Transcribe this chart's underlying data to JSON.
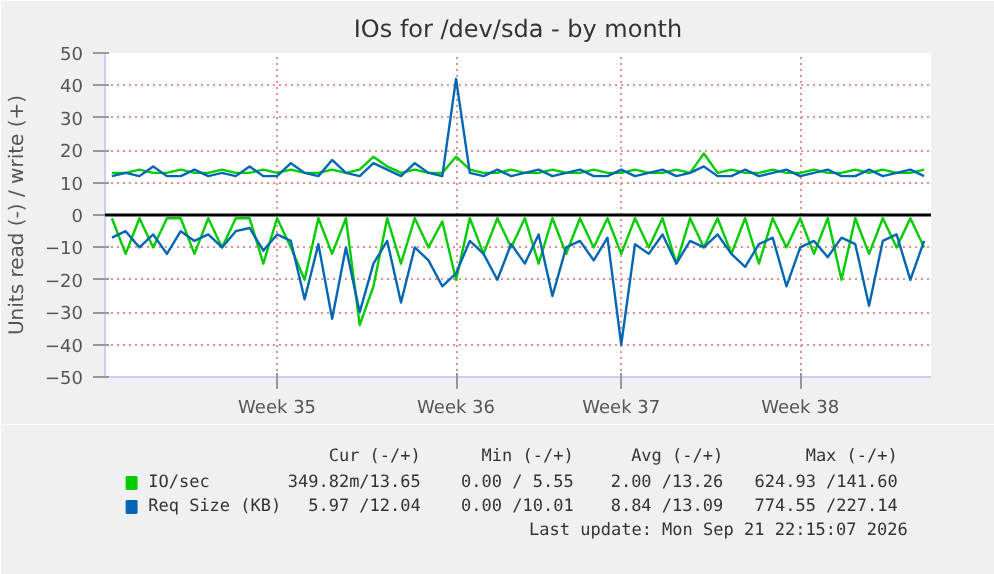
{
  "chart_data": {
    "type": "line",
    "title": "IOs for /dev/sda - by month",
    "ylabel": "Units read (-) / write (+)",
    "categories": [
      null,
      null,
      null,
      null,
      null,
      null,
      null,
      null,
      null,
      null,
      null,
      null,
      "Week 35",
      null,
      null,
      null,
      null,
      null,
      null,
      null,
      null,
      null,
      null,
      null,
      null,
      "Week 36",
      null,
      null,
      null,
      null,
      null,
      null,
      null,
      null,
      null,
      null,
      null,
      "Week 37",
      null,
      null,
      null,
      null,
      null,
      null,
      null,
      null,
      null,
      null,
      null,
      null,
      "Week 38",
      null,
      null,
      null,
      null,
      null,
      null,
      null,
      null,
      null
    ],
    "series": [
      {
        "name": "IO/sec",
        "color": "#00cc00",
        "values": [
          13,
          13,
          14,
          13,
          13,
          14,
          13,
          13,
          14,
          13,
          13,
          14,
          13,
          14,
          13,
          13,
          14,
          13,
          14,
          18,
          15,
          13,
          14,
          13,
          13,
          18,
          14,
          13,
          13,
          14,
          13,
          13,
          14,
          13,
          13,
          14,
          13,
          13,
          14,
          13,
          13,
          14,
          13,
          19,
          13,
          14,
          13,
          13,
          14,
          13,
          13,
          14,
          13,
          13,
          14,
          13,
          14,
          13,
          13,
          14
        ]
      },
      {
        "color": "#00cc00",
        "values": [
          -1,
          -12,
          -1,
          -10,
          -1,
          -1,
          -12,
          -1,
          -10,
          -1,
          -1,
          -15,
          -1,
          -10,
          -20,
          -1,
          -12,
          -1,
          -34,
          -22,
          -1,
          -15,
          -1,
          -10,
          -2,
          -20,
          -1,
          -12,
          -1,
          -10,
          -1,
          -15,
          -1,
          -12,
          -1,
          -10,
          -1,
          -12,
          -1,
          -10,
          -1,
          -15,
          -1,
          -10,
          -1,
          -12,
          -1,
          -15,
          -1,
          -10,
          -1,
          -12,
          -1,
          -20,
          -1,
          -12,
          -1,
          -10,
          -1,
          -10
        ]
      },
      {
        "name": "Req Size (KB)",
        "color": "#0066b3",
        "values": [
          12,
          13,
          12,
          15,
          12,
          12,
          14,
          12,
          13,
          12,
          15,
          12,
          12,
          16,
          13,
          12,
          17,
          13,
          12,
          16,
          14,
          12,
          16,
          13,
          12,
          42,
          13,
          12,
          14,
          12,
          13,
          14,
          12,
          13,
          14,
          12,
          12,
          14,
          12,
          13,
          14,
          12,
          13,
          15,
          12,
          12,
          14,
          12,
          13,
          14,
          12,
          13,
          14,
          12,
          12,
          14,
          12,
          13,
          14,
          12
        ]
      },
      {
        "color": "#0066b3",
        "values": [
          -7,
          -5,
          -10,
          -6,
          -12,
          -5,
          -8,
          -6,
          -10,
          -5,
          -4,
          -11,
          -6,
          -8,
          -26,
          -9,
          -32,
          -10,
          -30,
          -15,
          -8,
          -27,
          -10,
          -14,
          -22,
          -18,
          -8,
          -12,
          -20,
          -9,
          -15,
          -6,
          -25,
          -10,
          -8,
          -14,
          -7,
          -40,
          -9,
          -12,
          -6,
          -15,
          -8,
          -10,
          -6,
          -12,
          -16,
          -9,
          -7,
          -22,
          -10,
          -8,
          -13,
          -7,
          -9,
          -28,
          -8,
          -6,
          -20,
          -8
        ]
      }
    ],
    "ylim": [
      -50,
      50
    ],
    "yticks": [
      -50,
      -40,
      -30,
      -20,
      -10,
      0,
      10,
      20,
      30,
      40,
      50
    ],
    "ref_lines": [
      {
        "axis": "y",
        "value": 0,
        "color": "#000000"
      }
    ],
    "grid": true,
    "legend": "bottom",
    "line_style": "solid",
    "marker": "none",
    "annotations": [
      "Cur (-/+)",
      "Min (-/+)",
      "Avg (-/+)",
      "Max (-/+)",
      "349.82m/13.65",
      "0.00 / 5.55",
      "2.00 /13.26",
      "624.93 /141.60",
      "5.97 /12.04",
      "0.00 /10.01",
      "8.84 /13.09",
      "774.55 /227.14",
      "Last update: Mon Sep 21 22:15:07 2026"
    ]
  }
}
